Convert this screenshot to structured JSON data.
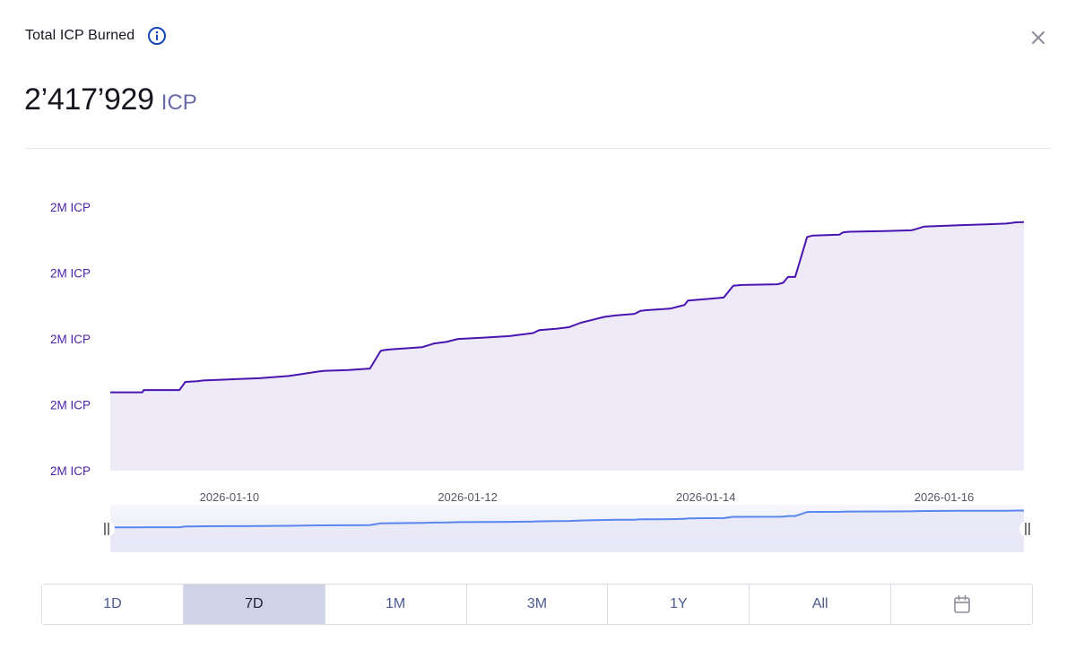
{
  "header": {
    "title": "Total ICP Burned"
  },
  "summary": {
    "value": "2’417’929",
    "unit": "ICP"
  },
  "icons": {
    "info": "info-icon",
    "close": "close-icon",
    "calendar": "calendar-icon",
    "handle": "drag-handle-icon"
  },
  "colors": {
    "line": "#4a14b0",
    "area": "#eeeaf7",
    "navigatorLine": "#5a86f0",
    "navigatorArea": "#e9e8f7",
    "activeRange": "#d0d3e6"
  },
  "range_buttons": [
    {
      "label": "1D",
      "active": false
    },
    {
      "label": "7D",
      "active": true
    },
    {
      "label": "1M",
      "active": false
    },
    {
      "label": "3M",
      "active": false
    },
    {
      "label": "1Y",
      "active": false
    },
    {
      "label": "All",
      "active": false
    },
    {
      "label": "",
      "icon": "calendar-icon",
      "active": false
    }
  ],
  "chart_data": {
    "type": "area",
    "title": "Total ICP Burned",
    "xlabel": "",
    "ylabel": "",
    "y_tick_labels": [
      "2M ICP",
      "2M ICP",
      "2M ICP",
      "2M ICP",
      "2M ICP"
    ],
    "x_ticks": [
      {
        "label": "2026-01-10",
        "x": 1.0
      },
      {
        "label": "2026-01-12",
        "x": 3.0
      },
      {
        "label": "2026-01-14",
        "x": 5.0
      },
      {
        "label": "2026-01-16",
        "x": 7.0
      }
    ],
    "x_range": [
      0.0,
      7.67
    ],
    "x_unit": "days since 2026-01-09",
    "ylim": [
      2416250,
      2418050
    ],
    "series": [
      {
        "name": "Total ICP Burned",
        "x": [
          0.0,
          0.27,
          0.28,
          0.58,
          0.63,
          0.73,
          0.78,
          1.08,
          1.25,
          1.5,
          1.75,
          1.8,
          2.0,
          2.18,
          2.27,
          2.3,
          2.35,
          2.62,
          2.72,
          2.82,
          2.92,
          3.15,
          3.35,
          3.55,
          3.6,
          3.75,
          3.85,
          3.95,
          4.05,
          4.15,
          4.25,
          4.4,
          4.45,
          4.5,
          4.7,
          4.82,
          4.85,
          5.0,
          5.15,
          5.23,
          5.3,
          5.6,
          5.65,
          5.69,
          5.75,
          5.85,
          5.9,
          6.12,
          6.15,
          6.2,
          6.5,
          6.72,
          6.75,
          6.83,
          7.0,
          7.15,
          7.35,
          7.52,
          7.57,
          7.6,
          7.67
        ],
        "y": [
          2416780,
          2416780,
          2416795,
          2416795,
          2416850,
          2416855,
          2416860,
          2416870,
          2416875,
          2416890,
          2416920,
          2416925,
          2416930,
          2416940,
          2417060,
          2417065,
          2417070,
          2417085,
          2417110,
          2417120,
          2417140,
          2417150,
          2417160,
          2417180,
          2417200,
          2417210,
          2417220,
          2417250,
          2417270,
          2417290,
          2417300,
          2417310,
          2417330,
          2417335,
          2417345,
          2417370,
          2417400,
          2417410,
          2417420,
          2417500,
          2417505,
          2417510,
          2417520,
          2417560,
          2417560,
          2417830,
          2417840,
          2417845,
          2417860,
          2417865,
          2417870,
          2417875,
          2417880,
          2417900,
          2417905,
          2417910,
          2417915,
          2417920,
          2417925,
          2417929,
          2417930
        ]
      }
    ],
    "navigator": {
      "range_start": 0.0,
      "range_end": 7.67
    },
    "legend": "none",
    "grid": false
  }
}
